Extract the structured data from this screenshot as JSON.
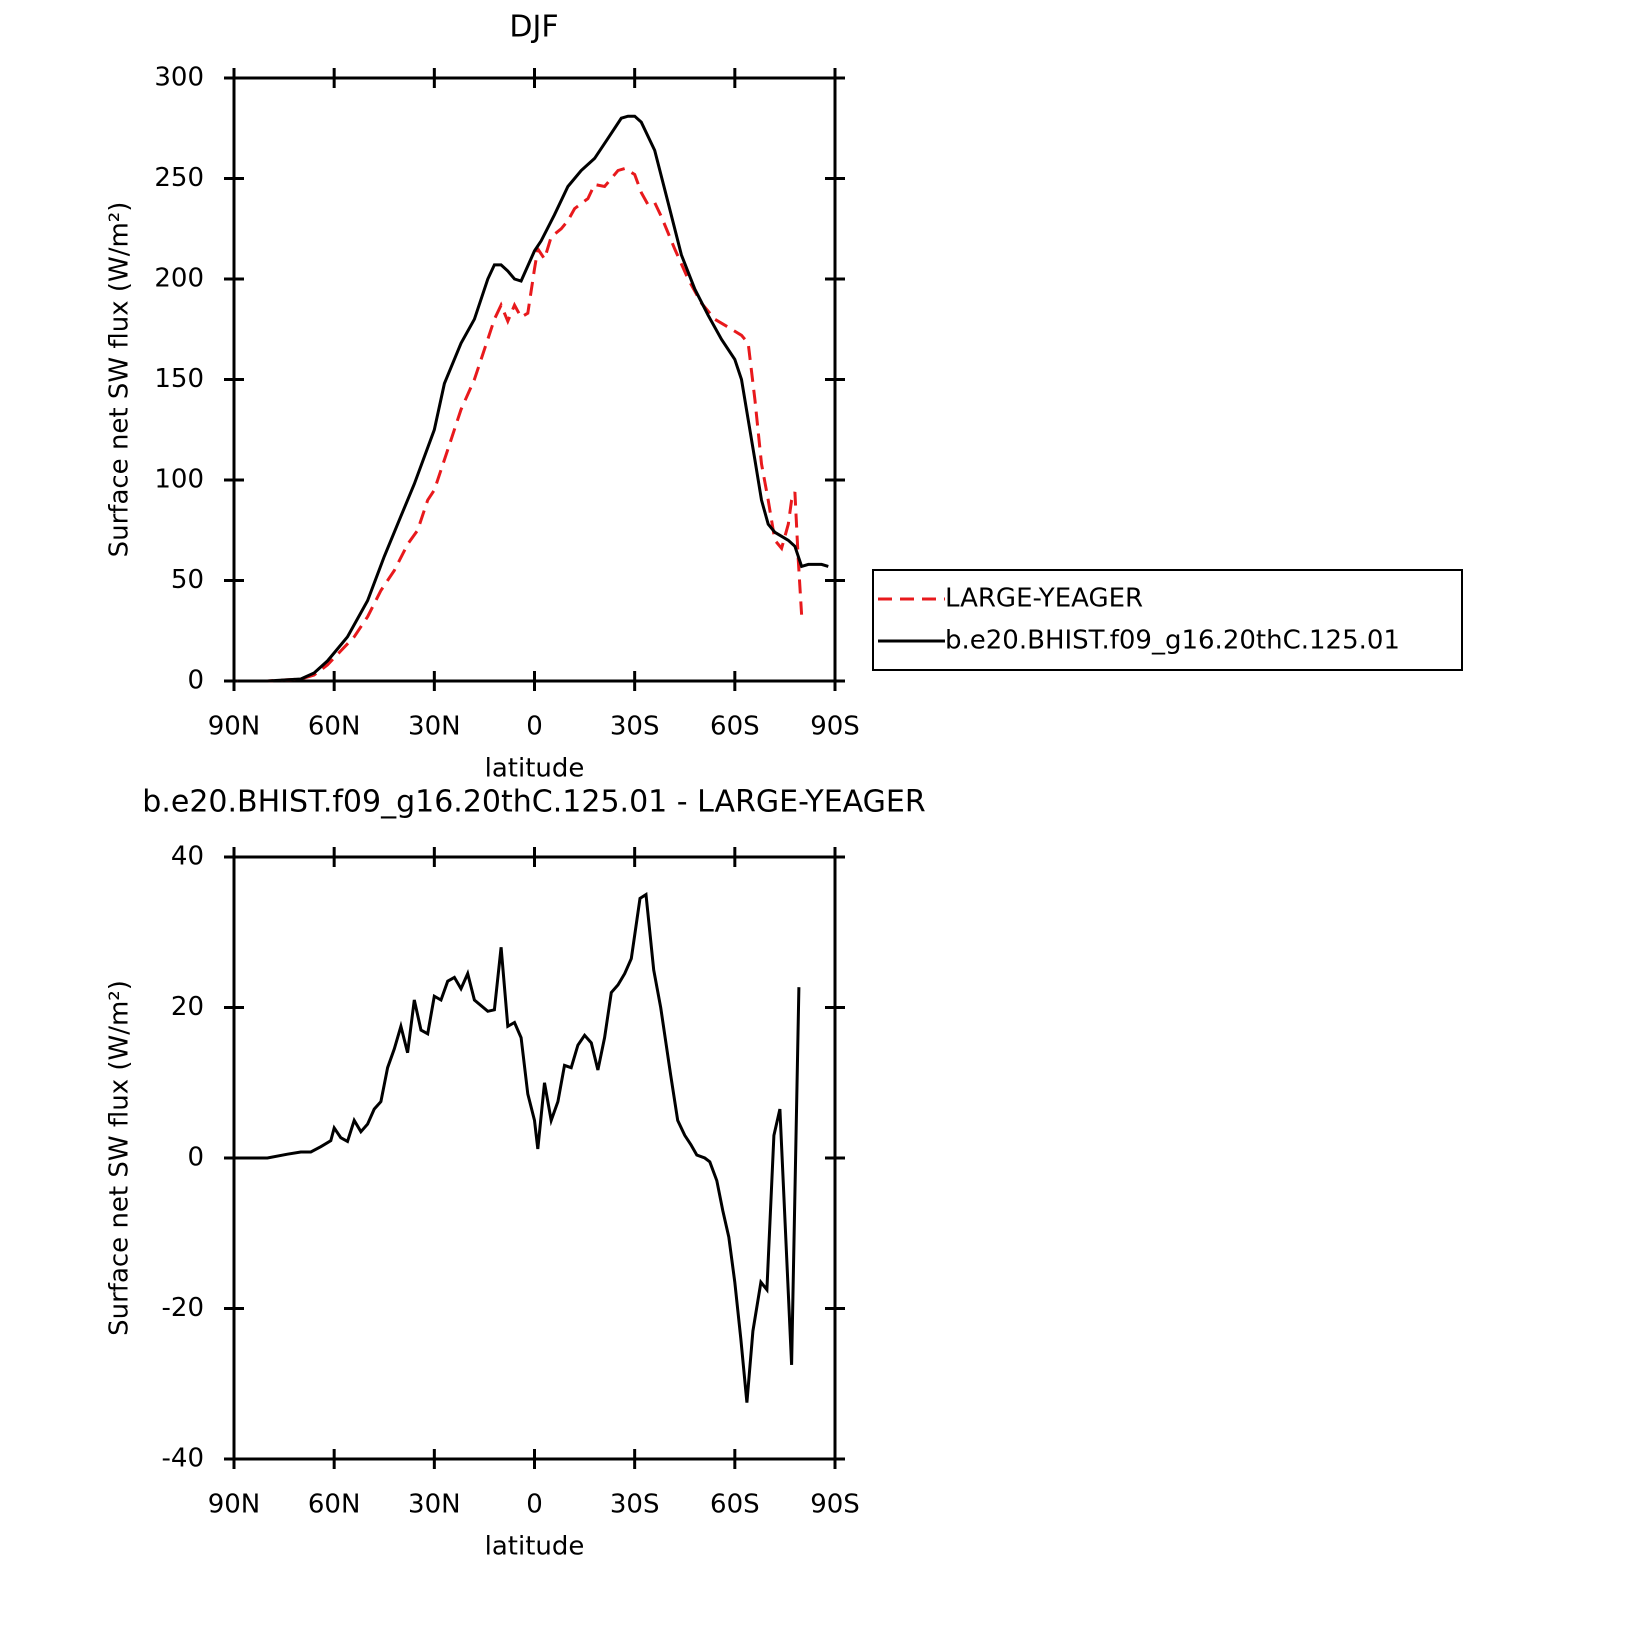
{
  "chart_data": [
    {
      "type": "line",
      "title": "DJF",
      "x_label": "latitude",
      "y_label": "Surface net SW flux (W/m²)",
      "xlim": [
        90,
        -90
      ],
      "xticks": [
        {
          "value": 90,
          "label": "90N"
        },
        {
          "value": 60,
          "label": "60N"
        },
        {
          "value": 30,
          "label": "30N"
        },
        0,
        {
          "value": -30,
          "label": "30S"
        },
        {
          "value": -60,
          "label": "60S"
        },
        {
          "value": -90,
          "label": "90S"
        }
      ],
      "ylim": [
        0,
        300
      ],
      "yticks": [
        0,
        50,
        100,
        150,
        200,
        250,
        300
      ],
      "legend": "right",
      "series": [
        {
          "name": "LARGE-YEAGER",
          "color": "#e8191c",
          "line_style": "dashed",
          "x": [
            89,
            80,
            70,
            66,
            62,
            58,
            54,
            50,
            46,
            42,
            38,
            35,
            32,
            30,
            26,
            22,
            18,
            14,
            12,
            10,
            8,
            6,
            4,
            2,
            0,
            -1,
            -3,
            -5,
            -8,
            -10,
            -12,
            -16,
            -18,
            -21,
            -25,
            -27,
            -30,
            -32,
            -34,
            -36,
            -38,
            -42,
            -46,
            -50,
            -54,
            -58,
            -62,
            -64,
            -66,
            -68,
            -70,
            -72,
            -74,
            -76,
            -77,
            -78,
            -79,
            -80
          ],
          "values": [
            0,
            0,
            1,
            3,
            8,
            15,
            22,
            32,
            45,
            55,
            68,
            75,
            90,
            95,
            115,
            135,
            150,
            170,
            180,
            187,
            179,
            187,
            181,
            183,
            205,
            215,
            210,
            221,
            225,
            229,
            235,
            240,
            247,
            246,
            254,
            255,
            252,
            243,
            237,
            238,
            231,
            215,
            200,
            188,
            180,
            176,
            172,
            168,
            140,
            108,
            90,
            70,
            66,
            78,
            90,
            94,
            60,
            33
          ]
        },
        {
          "name": "b.e20.BHIST.f09_g16.20thC.125.01",
          "color": "#000000",
          "line_style": "solid",
          "x": [
            89,
            80,
            70,
            66,
            62,
            60,
            56,
            50,
            45,
            40,
            36,
            30,
            27,
            22,
            18,
            14,
            12,
            10,
            8,
            6,
            4,
            0,
            -2,
            -6,
            -10,
            -14,
            -18,
            -22,
            -26,
            -28,
            -30,
            -32,
            -36,
            -40,
            -44,
            -48,
            -52,
            -56,
            -60,
            -62,
            -64,
            -66,
            -68,
            -70,
            -72,
            -76,
            -78,
            -80,
            -82,
            -86,
            -88
          ],
          "values": [
            0,
            0,
            1,
            4,
            10,
            14,
            22,
            40,
            62,
            82,
            98,
            125,
            148,
            168,
            180,
            200,
            207,
            207,
            204,
            200,
            199,
            214,
            219,
            232,
            246,
            254,
            260,
            270,
            280,
            281,
            281,
            278,
            264,
            238,
            212,
            195,
            182,
            170,
            160,
            150,
            130,
            110,
            90,
            78,
            74,
            70,
            67,
            57,
            58,
            58,
            57
          ]
        }
      ]
    },
    {
      "type": "line",
      "title": "b.e20.BHIST.f09_g16.20thC.125.01 - LARGE-YEAGER",
      "x_label": "latitude",
      "y_label": "Surface net SW flux (W/m²)",
      "xlim": [
        90,
        -90
      ],
      "xticks": [
        {
          "value": 90,
          "label": "90N"
        },
        {
          "value": 60,
          "label": "60N"
        },
        {
          "value": 30,
          "label": "30N"
        },
        0,
        {
          "value": -30,
          "label": "30S"
        },
        {
          "value": -60,
          "label": "60S"
        },
        {
          "value": -90,
          "label": "90S"
        }
      ],
      "ylim": [
        -40,
        40
      ],
      "yticks": [
        -40,
        -20,
        0,
        20,
        40
      ],
      "series": [
        {
          "color": "#000000",
          "line_style": "solid",
          "x": [
            89,
            80,
            74,
            70,
            67,
            64,
            61,
            60,
            58,
            56,
            54,
            52,
            50,
            48,
            46,
            44,
            42,
            40,
            38,
            36,
            34,
            32,
            30,
            28,
            26,
            24,
            22,
            20,
            18,
            14,
            12,
            10,
            8,
            6,
            4,
            2,
            0,
            -1,
            -3,
            -5,
            -7,
            -9,
            -11,
            -13,
            -15,
            -17,
            -19,
            -21,
            -23,
            -25,
            -27,
            -29,
            -31.6,
            -33.4,
            -35.7,
            -37.8,
            -40.8,
            -42.9,
            -45,
            -46.8,
            -48.6,
            -51,
            -52.5,
            -54.6,
            -56.4,
            -58.2,
            -60,
            -61.8,
            -63.6,
            -65.4,
            -67.8,
            -69.6,
            -71.7,
            -73.5,
            -77,
            -79.2
          ],
          "values": [
            0,
            0,
            0.5,
            0.8,
            0.8,
            1.5,
            2.3,
            4,
            2.7,
            2.2,
            5,
            3.5,
            4.5,
            6.5,
            7.5,
            12,
            14.5,
            17.5,
            14,
            21,
            17,
            16.5,
            21.5,
            21,
            23.5,
            24,
            22.5,
            24.5,
            21,
            19.5,
            19.7,
            28,
            17.5,
            18,
            16,
            8.5,
            5,
            1.2,
            10,
            5,
            7.5,
            12.3,
            12,
            15,
            16.3,
            15.3,
            11.7,
            16,
            22,
            23,
            24.5,
            26.5,
            34.5,
            35,
            25,
            20,
            11,
            5,
            3,
            1.8,
            0.4,
            0,
            -0.5,
            -3,
            -7,
            -10.5,
            -16.5,
            -24,
            -32.5,
            -23,
            -16.5,
            -17.5,
            3,
            6.5,
            -27.5,
            22.7
          ]
        }
      ]
    }
  ]
}
